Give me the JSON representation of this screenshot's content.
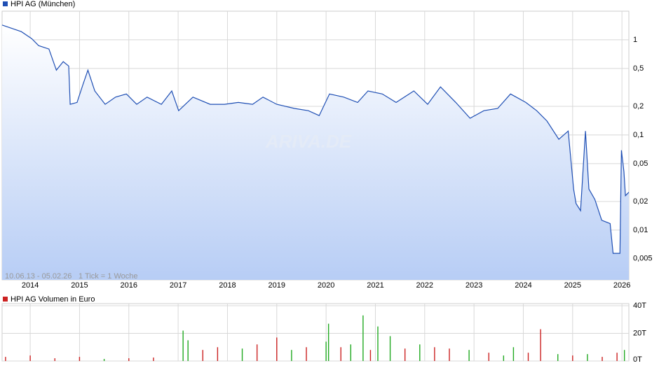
{
  "chart_data": [
    {
      "type": "line",
      "legend": "HPI AG (München)",
      "date_range": "10.06.13 - 05.02.26",
      "tick_note": "1 Tick = 1 Woche",
      "watermark": "ARIVA.DE",
      "color": "#1f4fb4",
      "log_scale": true,
      "grid": true,
      "xlim": [
        2013.43,
        2026.14
      ],
      "xticks": [
        2014,
        2015,
        2016,
        2017,
        2018,
        2019,
        2020,
        2021,
        2022,
        2023,
        2024,
        2025,
        2026
      ],
      "ylim": [
        0.003,
        2
      ],
      "yticks": [
        {
          "value": 0.005,
          "label": "0,005"
        },
        {
          "value": 0.01,
          "label": "0,01"
        },
        {
          "value": 0.02,
          "label": "0,02"
        },
        {
          "value": 0.05,
          "label": "0,05"
        },
        {
          "value": 0.1,
          "label": "0,1"
        },
        {
          "value": 0.2,
          "label": "0,2"
        },
        {
          "value": 0.5,
          "label": "0,5"
        },
        1
      ],
      "x": [
        2013.43,
        2013.82,
        2014.03,
        2014.17,
        2014.38,
        2014.53,
        2014.67,
        2014.78,
        2014.81,
        2014.95,
        2015.07,
        2015.17,
        2015.31,
        2015.52,
        2015.73,
        2015.95,
        2016.16,
        2016.37,
        2016.66,
        2016.87,
        2017.01,
        2017.3,
        2017.65,
        2017.94,
        2018.22,
        2018.51,
        2018.72,
        2019.0,
        2019.36,
        2019.64,
        2019.86,
        2020.07,
        2020.36,
        2020.64,
        2020.85,
        2021.14,
        2021.42,
        2021.78,
        2022.06,
        2022.32,
        2022.63,
        2022.92,
        2023.2,
        2023.48,
        2023.74,
        2024.05,
        2024.27,
        2024.48,
        2024.72,
        2024.91,
        2025.02,
        2025.07,
        2025.16,
        2025.26,
        2025.33,
        2025.45,
        2025.59,
        2025.76,
        2025.82,
        2025.96,
        2025.99,
        2026.04,
        2026.07,
        2026.14
      ],
      "values": [
        1.43,
        1.22,
        1.03,
        0.87,
        0.8,
        0.48,
        0.59,
        0.53,
        0.21,
        0.22,
        0.34,
        0.48,
        0.29,
        0.21,
        0.25,
        0.27,
        0.21,
        0.25,
        0.21,
        0.29,
        0.18,
        0.25,
        0.21,
        0.21,
        0.22,
        0.21,
        0.25,
        0.21,
        0.19,
        0.18,
        0.16,
        0.27,
        0.25,
        0.22,
        0.29,
        0.27,
        0.22,
        0.29,
        0.21,
        0.32,
        0.22,
        0.15,
        0.18,
        0.19,
        0.27,
        0.22,
        0.18,
        0.14,
        0.09,
        0.11,
        0.027,
        0.019,
        0.016,
        0.11,
        0.027,
        0.021,
        0.0127,
        0.0117,
        0.0057,
        0.0057,
        0.069,
        0.041,
        0.023,
        0.025
      ]
    },
    {
      "type": "bar",
      "legend": "HPI AG Volumen in Euro",
      "grid": true,
      "xlim": [
        2013.43,
        2026.14
      ],
      "ylim": [
        0,
        40000
      ],
      "yticks": [
        {
          "value": 0,
          "label": "0T"
        },
        {
          "value": 20000,
          "label": "20T"
        },
        {
          "value": 40000,
          "label": "40T"
        }
      ],
      "x": [
        2013.5,
        2014.0,
        2014.5,
        2015.0,
        2015.5,
        2016.0,
        2016.5,
        2017.1,
        2017.2,
        2017.5,
        2017.8,
        2018.3,
        2018.6,
        2019.0,
        2019.3,
        2019.6,
        2020.0,
        2020.05,
        2020.3,
        2020.5,
        2020.75,
        2020.9,
        2021.05,
        2021.3,
        2021.6,
        2021.9,
        2022.2,
        2022.5,
        2022.9,
        2023.3,
        2023.6,
        2023.8,
        2024.1,
        2024.35,
        2024.7,
        2025.0,
        2025.3,
        2025.6,
        2025.9,
        2026.05
      ],
      "values": [
        3000,
        4000,
        2000,
        3000,
        1500,
        2000,
        2500,
        22000,
        15000,
        8000,
        10000,
        9000,
        12000,
        17000,
        8000,
        10000,
        14000,
        27000,
        10000,
        12000,
        33000,
        8000,
        25000,
        18000,
        9000,
        12000,
        10000,
        9000,
        8000,
        6000,
        4000,
        10000,
        6000,
        23000,
        5000,
        4000,
        5000,
        3000,
        6000,
        8000
      ],
      "colors": [
        "#cc2222",
        "#cc2222",
        "#cc2222",
        "#cc2222",
        "#22aa22",
        "#cc2222",
        "#cc2222",
        "#22aa22",
        "#22aa22",
        "#cc2222",
        "#cc2222",
        "#22aa22",
        "#cc2222",
        "#cc2222",
        "#22aa22",
        "#cc2222",
        "#22aa22",
        "#22aa22",
        "#cc2222",
        "#22aa22",
        "#22aa22",
        "#cc2222",
        "#22aa22",
        "#22aa22",
        "#cc2222",
        "#22aa22",
        "#cc2222",
        "#cc2222",
        "#22aa22",
        "#cc2222",
        "#22aa22",
        "#22aa22",
        "#cc2222",
        "#cc2222",
        "#22aa22",
        "#cc2222",
        "#22aa22",
        "#cc2222",
        "#cc2222",
        "#22aa22"
      ],
      "color": "#cc2222"
    }
  ]
}
